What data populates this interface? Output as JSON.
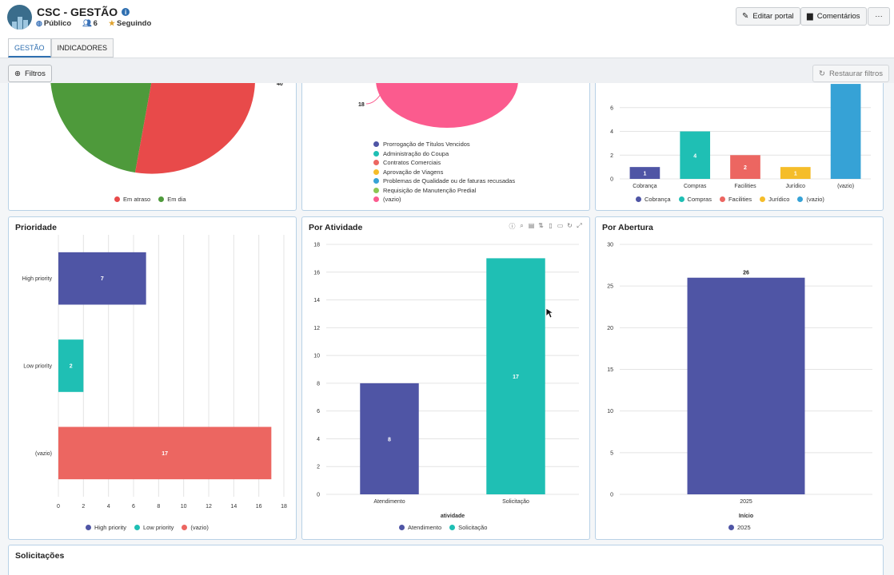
{
  "header": {
    "title": "CSC - GESTÃO",
    "visibility": "Público",
    "members": "6",
    "following": "Seguindo",
    "edit_label": "Editar portal",
    "comments_label": "Comentários",
    "more_label": "···"
  },
  "tabs": [
    {
      "label": "GESTÃO",
      "active": true
    },
    {
      "label": "INDICADORES",
      "active": false
    }
  ],
  "filters": {
    "label": "Filtros",
    "restore_label": "Restaurar filtros"
  },
  "colors": {
    "purple": "#4f55a5",
    "teal": "#1fbfb4",
    "salmon": "#ec6661",
    "yellow": "#f5bd2a",
    "blue": "#36a2d6",
    "green": "#4e9a3b",
    "red": "#e84a4a",
    "pink": "#fb5b8e",
    "lightgreen": "#8cc653"
  },
  "panels": {
    "prazo": {
      "legend": [
        {
          "name": "Em atraso",
          "color": "#e84a4a"
        },
        {
          "name": "Em dia",
          "color": "#4e9a3b"
        }
      ],
      "top_label": "40"
    },
    "processo": {
      "slice_label": "18",
      "legend": [
        {
          "name": "Prorrogação de Títulos Vencidos",
          "color": "#4f55a5"
        },
        {
          "name": "Administração do Coupa",
          "color": "#1fbfb4"
        },
        {
          "name": "Contratos Comerciais",
          "color": "#ec6661"
        },
        {
          "name": "Aprovação de Viagens",
          "color": "#f5bd2a"
        },
        {
          "name": "Problemas de Qualidade ou de faturas recusadas",
          "color": "#36a2d6"
        },
        {
          "name": "Requisição de Manutenção Predial",
          "color": "#8cc653"
        },
        {
          "name": "(vazio)",
          "color": "#fb5b8e"
        }
      ]
    },
    "prioridade": {
      "title": "Prioridade"
    },
    "atividade": {
      "title": "Por Atividade"
    },
    "abertura": {
      "title": "Por Abertura"
    },
    "solicitacoes": {
      "title": "Solicitações"
    }
  },
  "chart_data": [
    {
      "type": "pie",
      "title": "",
      "labels": [
        "Em atraso",
        "Em dia"
      ],
      "values": [
        40,
        38
      ],
      "colors": [
        "#e84a4a",
        "#4e9a3b"
      ]
    },
    {
      "type": "pie",
      "title": "",
      "labels": [
        "(vazio)"
      ],
      "values": [
        18
      ],
      "colors": [
        "#fb5b8e"
      ]
    },
    {
      "type": "bar",
      "title": "",
      "categories": [
        "Cobrança",
        "Compras",
        "Facilities",
        "Jurídico",
        "(vazio)"
      ],
      "values": [
        1,
        4,
        2,
        1,
        8
      ],
      "colors": [
        "#4f55a5",
        "#1fbfb4",
        "#ec6661",
        "#f5bd2a",
        "#36a2d6"
      ],
      "yticks": [
        0,
        2,
        4,
        6
      ],
      "ylim": [
        0,
        7.4
      ],
      "legend": [
        "Cobrança",
        "Compras",
        "Facilities",
        "Jurídico",
        "(vazio)"
      ]
    },
    {
      "type": "bar",
      "orientation": "horizontal",
      "title": "Prioridade",
      "categories": [
        "High priority",
        "Low priority",
        "(vazio)"
      ],
      "values": [
        7,
        2,
        17
      ],
      "colors": [
        "#4f55a5",
        "#1fbfb4",
        "#ec6661"
      ],
      "xticks": [
        0,
        2,
        4,
        6,
        8,
        10,
        12,
        14,
        16,
        18
      ],
      "xlim": [
        0,
        18
      ],
      "legend": [
        "High priority",
        "Low priority",
        "(vazio)"
      ]
    },
    {
      "type": "bar",
      "title": "Por Atividade",
      "categories": [
        "Atendimento",
        "Solicitação"
      ],
      "values": [
        8,
        17
      ],
      "colors": [
        "#4f55a5",
        "#1fbfb4"
      ],
      "xlabel": "atividade",
      "yticks": [
        0,
        2,
        4,
        6,
        8,
        10,
        12,
        14,
        16,
        18
      ],
      "ylim": [
        0,
        18
      ],
      "legend": [
        "Atendimento",
        "Solicitação"
      ]
    },
    {
      "type": "bar",
      "title": "Por Abertura",
      "categories": [
        "2025"
      ],
      "values": [
        26
      ],
      "colors": [
        "#4f55a5"
      ],
      "xlabel": "Início",
      "yticks": [
        0,
        5,
        10,
        15,
        20,
        25,
        30
      ],
      "ylim": [
        0,
        30
      ],
      "legend": [
        "2025"
      ]
    }
  ]
}
